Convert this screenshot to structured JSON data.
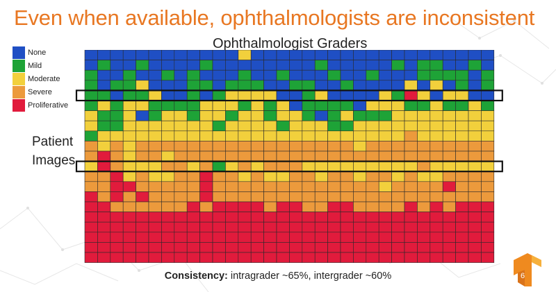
{
  "slide": {
    "title": "Even when available, ophthalmologists are inconsistent",
    "footnote_bold": "Consistency:",
    "footnote_rest": " intragrader ~65%, intergrader ~60%",
    "page_number": "6",
    "logo_icon": "tensorflow-logo-icon"
  },
  "chart_data": {
    "type": "heatmap",
    "title": "Ophthalmologist Graders",
    "ylabel": "Patient Images",
    "categories": [
      "None",
      "Mild",
      "Moderate",
      "Severe",
      "Proliferative"
    ],
    "colors": [
      "#1f4fc4",
      "#1ea337",
      "#f2d03c",
      "#ec9a3c",
      "#e11b3c"
    ],
    "legend": [
      {
        "label": "None",
        "color": "#1f4fc4"
      },
      {
        "label": "Mild",
        "color": "#1ea337"
      },
      {
        "label": "Moderate",
        "color": "#f2d03c"
      },
      {
        "label": "Severe",
        "color": "#ec9a3c"
      },
      {
        "label": "Proliferative",
        "color": "#e11b3c"
      }
    ],
    "grid": "on",
    "legend_position": "top-left",
    "highlighted_rows": [
      4,
      11
    ],
    "matrix": [
      [
        0,
        0,
        0,
        0,
        0,
        0,
        0,
        0,
        0,
        0,
        0,
        0,
        2,
        0,
        0,
        0,
        0,
        0,
        0,
        0,
        0,
        0,
        0,
        0,
        0,
        0,
        0,
        0,
        0,
        0,
        0,
        0
      ],
      [
        0,
        1,
        0,
        0,
        1,
        0,
        0,
        0,
        0,
        1,
        0,
        0,
        0,
        0,
        0,
        0,
        0,
        0,
        1,
        0,
        0,
        0,
        0,
        0,
        1,
        0,
        1,
        1,
        0,
        0,
        1,
        0
      ],
      [
        1,
        0,
        0,
        1,
        0,
        0,
        1,
        0,
        1,
        0,
        0,
        0,
        1,
        0,
        0,
        1,
        0,
        0,
        0,
        1,
        0,
        0,
        1,
        0,
        0,
        0,
        1,
        1,
        1,
        1,
        0,
        1
      ],
      [
        1,
        0,
        1,
        1,
        2,
        0,
        0,
        0,
        1,
        1,
        0,
        1,
        1,
        1,
        0,
        0,
        1,
        1,
        0,
        0,
        1,
        0,
        0,
        0,
        0,
        2,
        0,
        2,
        0,
        1,
        0,
        1
      ],
      [
        1,
        1,
        0,
        1,
        1,
        2,
        0,
        0,
        1,
        0,
        1,
        2,
        2,
        2,
        2,
        0,
        0,
        1,
        2,
        0,
        0,
        0,
        0,
        2,
        1,
        4,
        2,
        0,
        2,
        2,
        0,
        0
      ],
      [
        1,
        2,
        1,
        2,
        2,
        1,
        1,
        1,
        1,
        2,
        2,
        2,
        1,
        2,
        1,
        2,
        0,
        1,
        1,
        1,
        1,
        0,
        2,
        2,
        2,
        1,
        1,
        2,
        1,
        1,
        2,
        1
      ],
      [
        2,
        1,
        1,
        2,
        0,
        1,
        2,
        2,
        1,
        2,
        2,
        1,
        2,
        2,
        1,
        2,
        2,
        1,
        0,
        1,
        2,
        1,
        1,
        1,
        2,
        2,
        2,
        2,
        2,
        2,
        2,
        2
      ],
      [
        2,
        1,
        1,
        2,
        2,
        2,
        2,
        2,
        2,
        2,
        1,
        2,
        2,
        2,
        2,
        1,
        2,
        2,
        2,
        1,
        1,
        2,
        2,
        2,
        2,
        2,
        2,
        2,
        2,
        2,
        2,
        2
      ],
      [
        1,
        2,
        2,
        2,
        2,
        2,
        2,
        2,
        2,
        2,
        2,
        2,
        2,
        2,
        2,
        2,
        2,
        2,
        2,
        2,
        2,
        2,
        2,
        2,
        2,
        3,
        2,
        2,
        2,
        2,
        2,
        2
      ],
      [
        3,
        2,
        3,
        2,
        3,
        3,
        3,
        3,
        3,
        3,
        3,
        3,
        3,
        3,
        3,
        3,
        3,
        3,
        3,
        3,
        3,
        2,
        3,
        3,
        3,
        3,
        3,
        3,
        3,
        3,
        3,
        3
      ],
      [
        3,
        4,
        3,
        2,
        3,
        3,
        2,
        3,
        3,
        3,
        3,
        3,
        3,
        3,
        3,
        3,
        3,
        3,
        3,
        3,
        3,
        3,
        3,
        3,
        3,
        3,
        3,
        3,
        3,
        3,
        3,
        3
      ],
      [
        2,
        4,
        3,
        2,
        2,
        2,
        3,
        3,
        2,
        3,
        1,
        2,
        3,
        2,
        3,
        3,
        3,
        2,
        2,
        2,
        2,
        2,
        2,
        2,
        2,
        2,
        3,
        2,
        2,
        2,
        2,
        2
      ],
      [
        3,
        3,
        4,
        2,
        3,
        2,
        2,
        3,
        3,
        4,
        3,
        3,
        2,
        3,
        2,
        2,
        3,
        3,
        2,
        3,
        3,
        2,
        3,
        3,
        2,
        3,
        2,
        2,
        3,
        3,
        3,
        3
      ],
      [
        3,
        3,
        4,
        4,
        3,
        3,
        3,
        3,
        3,
        4,
        3,
        3,
        3,
        3,
        3,
        3,
        3,
        3,
        3,
        3,
        3,
        3,
        3,
        2,
        3,
        3,
        3,
        3,
        4,
        3,
        3,
        3
      ],
      [
        4,
        3,
        4,
        3,
        4,
        3,
        3,
        3,
        3,
        4,
        3,
        3,
        3,
        3,
        3,
        3,
        3,
        3,
        3,
        3,
        3,
        3,
        3,
        3,
        3,
        3,
        3,
        3,
        3,
        3,
        3,
        3
      ],
      [
        4,
        4,
        3,
        3,
        3,
        3,
        3,
        3,
        4,
        3,
        4,
        4,
        4,
        4,
        3,
        4,
        4,
        3,
        3,
        4,
        4,
        3,
        3,
        3,
        3,
        4,
        3,
        4,
        3,
        4,
        4,
        4
      ],
      [
        4,
        4,
        4,
        4,
        4,
        4,
        4,
        4,
        4,
        4,
        4,
        4,
        4,
        4,
        4,
        4,
        4,
        4,
        4,
        4,
        4,
        4,
        4,
        4,
        4,
        4,
        4,
        4,
        4,
        4,
        4,
        4
      ],
      [
        4,
        4,
        4,
        4,
        4,
        4,
        4,
        4,
        4,
        4,
        4,
        4,
        4,
        4,
        4,
        4,
        4,
        4,
        4,
        4,
        4,
        4,
        4,
        4,
        4,
        4,
        4,
        4,
        4,
        4,
        4,
        4
      ],
      [
        4,
        4,
        4,
        4,
        4,
        4,
        4,
        4,
        4,
        4,
        4,
        4,
        4,
        4,
        4,
        4,
        4,
        4,
        4,
        4,
        4,
        4,
        4,
        4,
        4,
        4,
        4,
        4,
        4,
        4,
        4,
        4
      ],
      [
        4,
        4,
        4,
        4,
        4,
        4,
        4,
        4,
        4,
        4,
        4,
        4,
        4,
        4,
        4,
        4,
        4,
        4,
        4,
        4,
        4,
        4,
        4,
        4,
        4,
        4,
        4,
        4,
        4,
        4,
        4,
        4
      ],
      [
        4,
        4,
        4,
        4,
        4,
        4,
        4,
        4,
        4,
        4,
        4,
        4,
        4,
        4,
        4,
        4,
        4,
        4,
        4,
        4,
        4,
        4,
        4,
        4,
        4,
        4,
        4,
        4,
        4,
        4,
        4,
        4
      ]
    ]
  }
}
